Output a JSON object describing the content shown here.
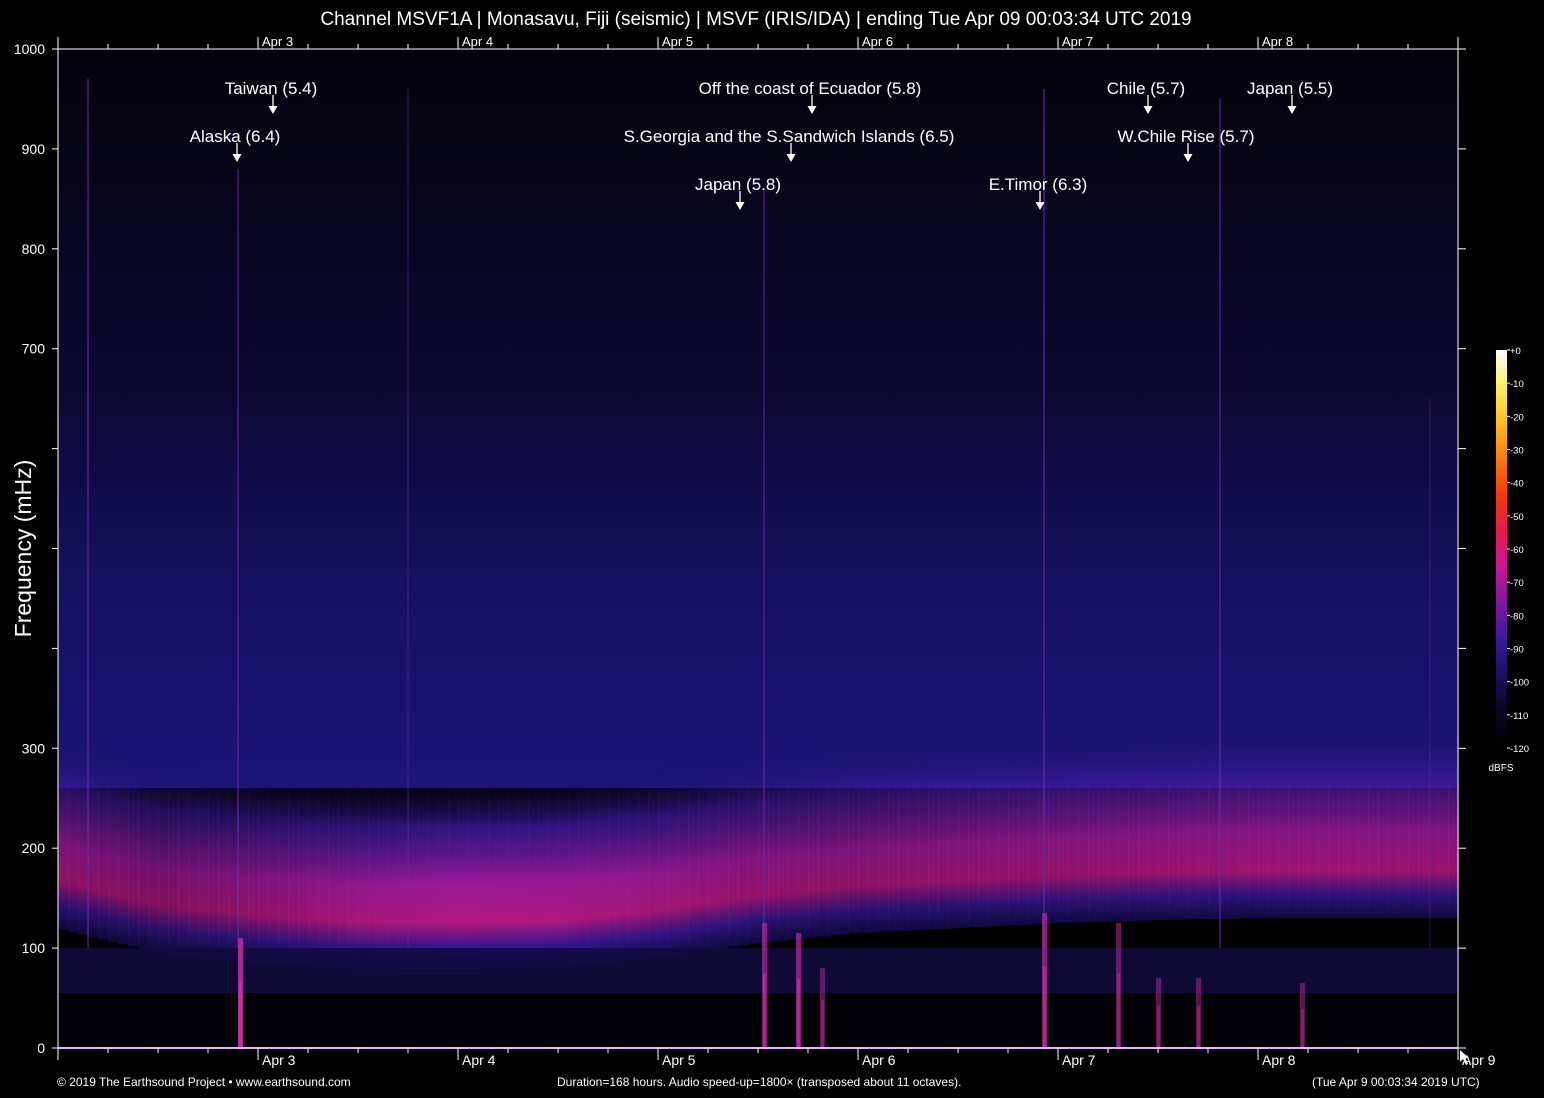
{
  "title": "Channel MSVF1A | Monasavu, Fiji (seismic) | MSVF (IRIS/IDA) | ending Tue Apr 09 00:03:34 UTC 2019",
  "footer": {
    "left": "© 2019 The Earthsound Project • www.earthsound.com",
    "center": "Duration=168 hours. Audio speed-up=1800× (transposed about 11 octaves).",
    "right": "(Tue Apr  9 00:03:34 2019 UTC)"
  },
  "colors": {
    "background": "#000000",
    "text": "#ffffff",
    "axis": "#ffffff",
    "baseline": "#b070ff",
    "colormap": [
      "#000000",
      "#0a0520",
      "#1a1060",
      "#3a1a9a",
      "#7a1aa0",
      "#c01a90",
      "#e41a50",
      "#f23a10",
      "#f87a10",
      "#fcc020",
      "#fff060",
      "#ffffff"
    ]
  },
  "chart_data": {
    "type": "heatmap",
    "xlabel": "",
    "ylabel": "Frequency (mHz)",
    "ylim": [
      0,
      1000
    ],
    "yticks": [
      0,
      100,
      200,
      300,
      400,
      500,
      600,
      700,
      800,
      900,
      1000
    ],
    "ytick_labels": [
      "0",
      "100",
      "200",
      "300",
      "",
      "",
      "",
      "700",
      "800",
      "900",
      "1000"
    ],
    "xlim_days": [
      2.0,
      9.0
    ],
    "xticks": [
      {
        "t": 3,
        "label": "Apr 3"
      },
      {
        "t": 4,
        "label": "Apr 4"
      },
      {
        "t": 5,
        "label": "Apr 5"
      },
      {
        "t": 6,
        "label": "Apr 6"
      },
      {
        "t": 7,
        "label": "Apr 7"
      },
      {
        "t": 8,
        "label": "Apr 8"
      },
      {
        "t": 9,
        "label": "Apr 9"
      }
    ],
    "colorbar": {
      "unit": "dBFS",
      "range": [
        -120,
        0
      ],
      "ticks": [
        "+0",
        "-10",
        "-20",
        "-30",
        "-40",
        "-50",
        "-60",
        "-70",
        "-80",
        "-90",
        "-100",
        "-110",
        "-120"
      ]
    },
    "noise_band": [
      {
        "t": 2.0,
        "center_mHz": 190,
        "level": 0.78
      },
      {
        "t": 2.5,
        "center_mHz": 165,
        "level": 0.72
      },
      {
        "t": 3.0,
        "center_mHz": 155,
        "level": 0.8
      },
      {
        "t": 3.5,
        "center_mHz": 148,
        "level": 0.92
      },
      {
        "t": 4.0,
        "center_mHz": 148,
        "level": 1.0
      },
      {
        "t": 4.5,
        "center_mHz": 150,
        "level": 0.98
      },
      {
        "t": 5.0,
        "center_mHz": 160,
        "level": 0.9
      },
      {
        "t": 5.5,
        "center_mHz": 175,
        "level": 0.82
      },
      {
        "t": 6.0,
        "center_mHz": 185,
        "level": 0.78
      },
      {
        "t": 6.5,
        "center_mHz": 190,
        "level": 0.8
      },
      {
        "t": 7.0,
        "center_mHz": 195,
        "level": 0.82
      },
      {
        "t": 7.5,
        "center_mHz": 198,
        "level": 0.84
      },
      {
        "t": 8.0,
        "center_mHz": 200,
        "level": 0.86
      },
      {
        "t": 8.5,
        "center_mHz": 200,
        "level": 0.86
      },
      {
        "t": 9.0,
        "center_mHz": 200,
        "level": 0.84
      }
    ],
    "events": [
      {
        "label": "Taiwan (5.4)",
        "t": 3.075,
        "row": 0
      },
      {
        "label": "Off the coast of Ecuador (5.8)",
        "t": 5.77,
        "row": 0
      },
      {
        "label": "Chile (5.7)",
        "t": 7.45,
        "row": 0
      },
      {
        "label": "Japan (5.5)",
        "t": 8.17,
        "row": 0
      },
      {
        "label": "Alaska (6.4)",
        "t": 2.895,
        "row": 1
      },
      {
        "label": "S.Georgia and the S.Sandwich Islands (6.5)",
        "t": 5.665,
        "row": 1
      },
      {
        "label": "W.Chile Rise (5.7)",
        "t": 7.65,
        "row": 1
      },
      {
        "label": "Japan (5.8)",
        "t": 5.41,
        "row": 2
      },
      {
        "label": "E.Timor (6.3)",
        "t": 6.91,
        "row": 2
      }
    ],
    "vertical_streaks": [
      {
        "t": 2.15,
        "top_mHz": 970,
        "strength": 0.5
      },
      {
        "t": 2.9,
        "top_mHz": 880,
        "strength": 0.45
      },
      {
        "t": 3.75,
        "top_mHz": 960,
        "strength": 0.25
      },
      {
        "t": 5.53,
        "top_mHz": 860,
        "strength": 0.45
      },
      {
        "t": 6.93,
        "top_mHz": 960,
        "strength": 0.55
      },
      {
        "t": 7.81,
        "top_mHz": 950,
        "strength": 0.5
      },
      {
        "t": 8.86,
        "top_mHz": 650,
        "strength": 0.2
      }
    ],
    "low_freq_bursts": [
      {
        "t": 2.91,
        "top_mHz": 110,
        "strength": 0.95
      },
      {
        "t": 5.53,
        "top_mHz": 125,
        "strength": 0.7
      },
      {
        "t": 5.7,
        "top_mHz": 115,
        "strength": 0.75
      },
      {
        "t": 5.82,
        "top_mHz": 80,
        "strength": 0.5
      },
      {
        "t": 6.93,
        "top_mHz": 135,
        "strength": 0.75
      },
      {
        "t": 7.3,
        "top_mHz": 125,
        "strength": 0.55
      },
      {
        "t": 7.5,
        "top_mHz": 70,
        "strength": 0.5
      },
      {
        "t": 7.7,
        "top_mHz": 70,
        "strength": 0.5
      },
      {
        "t": 8.22,
        "top_mHz": 65,
        "strength": 0.5
      }
    ]
  }
}
